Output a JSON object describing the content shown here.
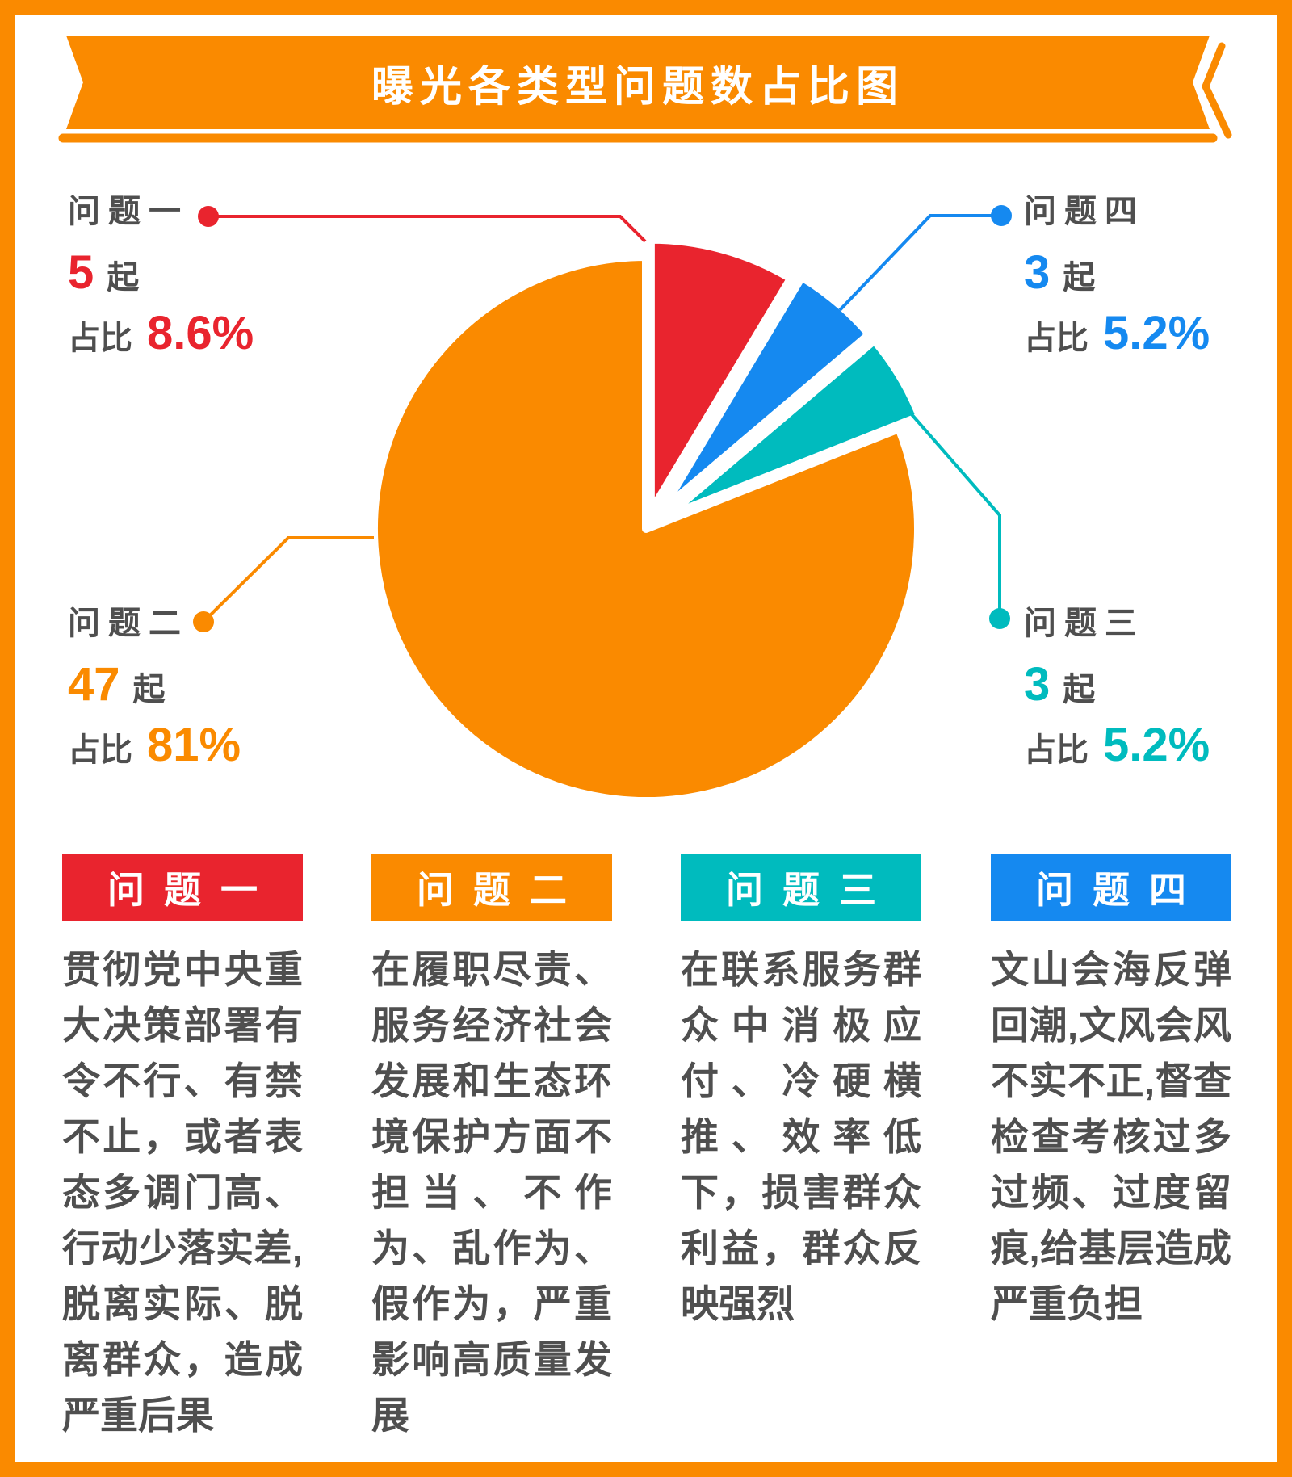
{
  "page": {
    "background": "#FFFFFF",
    "border_color": "#FA8A00"
  },
  "banner": {
    "title": "曝光各类型问题数占比图",
    "color": "#FA8A00",
    "text_color": "#FFFFFF"
  },
  "chart_data": {
    "type": "pie",
    "title": "曝光各类型问题数占比图",
    "unit": "起",
    "direction": "clockwise",
    "start_angle_deg": 0,
    "slice_gap_stroke": "#FFFFFF",
    "slices": [
      {
        "label": "问题一",
        "value": 5,
        "percent": 8.6,
        "percent_label": "8.6%",
        "color": "#E9242E",
        "explode": 22
      },
      {
        "label": "问题四",
        "value": 3,
        "percent": 5.2,
        "percent_label": "5.2%",
        "color": "#1589F0",
        "explode": 30
      },
      {
        "label": "问题三",
        "value": 3,
        "percent": 5.2,
        "percent_label": "5.2%",
        "color": "#00BBBE",
        "explode": 30
      },
      {
        "label": "问题二",
        "value": 47,
        "percent": 81,
        "percent_label": "81%",
        "color": "#FA8A00",
        "explode": 0
      }
    ]
  },
  "callouts": {
    "problem1": {
      "name": "问题一",
      "count": "5",
      "unit": "起",
      "prefix": "占比",
      "percent": "8.6%",
      "color": "#E9242E"
    },
    "problem2": {
      "name": "问题二",
      "count": "47",
      "unit": "起",
      "prefix": "占比",
      "percent": "81%",
      "color": "#FA8A00"
    },
    "problem3": {
      "name": "问题三",
      "count": "3",
      "unit": "起",
      "prefix": "占比",
      "percent": "5.2%",
      "color": "#00BBBE"
    },
    "problem4": {
      "name": "问题四",
      "count": "3",
      "unit": "起",
      "prefix": "占比",
      "percent": "5.2%",
      "color": "#1589F0"
    }
  },
  "legend_cards": [
    {
      "title": "问题一",
      "color": "#E9242E",
      "body": "贯彻党中央重大决策部署有令不行、有禁不止，或者表态多调门高、行动少落实差,脱离实际、脱离群众，造成严重后果"
    },
    {
      "title": "问题二",
      "color": "#FA8A00",
      "body": "在履职尽责、服务经济社会发展和生态环境保护方面不担当、不作为、乱作为、假作为，严重影响高质量发展"
    },
    {
      "title": "问题三",
      "color": "#00BBBE",
      "body": "在联系服务群众中消极应付、冷硬横推、效率低下，损害群众利益，群众反映强烈"
    },
    {
      "title": "问题四",
      "color": "#1589F0",
      "body": "文山会海反弹回潮,文风会风不实不正,督查检查考核过多过频、过度留痕,给基层造成严重负担"
    }
  ]
}
